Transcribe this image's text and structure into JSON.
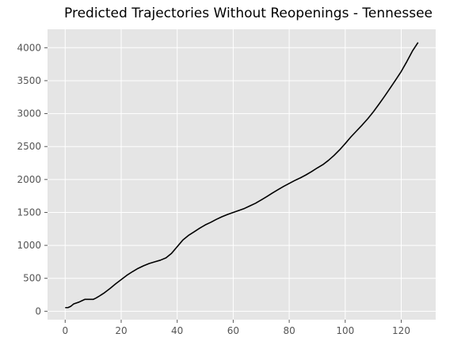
{
  "chart_data": {
    "type": "line",
    "title": "Predicted Trajectories Without Reopenings - Tennessee",
    "xlabel": "",
    "ylabel": "",
    "xlim": [
      -6.3,
      132.3
    ],
    "ylim": [
      -128,
      4280
    ],
    "xticks": [
      0,
      20,
      40,
      60,
      80,
      100,
      120
    ],
    "yticks": [
      0,
      500,
      1000,
      1500,
      2000,
      2500,
      3000,
      3500,
      4000
    ],
    "grid": true,
    "legend": "none",
    "colors": {
      "axes_background": "#e5e5e5",
      "grid": "#ffffff",
      "line": "#000000",
      "tick_label": "#555555"
    },
    "series": [
      {
        "x": [
          0,
          1,
          2,
          3,
          5,
          6,
          7,
          8,
          10,
          11,
          12,
          14,
          16,
          18,
          20,
          22,
          24,
          26,
          28,
          30,
          32,
          34,
          36,
          38,
          40,
          42,
          44,
          46,
          48,
          50,
          52,
          54,
          56,
          58,
          60,
          62,
          64,
          66,
          68,
          70,
          72,
          74,
          76,
          78,
          80,
          82,
          84,
          86,
          88,
          90,
          92,
          94,
          96,
          98,
          100,
          102,
          104,
          106,
          108,
          110,
          112,
          114,
          116,
          118,
          120,
          122,
          124,
          126
        ],
        "values": [
          55,
          55,
          75,
          110,
          140,
          160,
          180,
          180,
          180,
          200,
          225,
          280,
          345,
          415,
          480,
          545,
          600,
          650,
          690,
          725,
          750,
          775,
          810,
          880,
          980,
          1080,
          1150,
          1205,
          1260,
          1310,
          1350,
          1395,
          1435,
          1470,
          1500,
          1530,
          1560,
          1600,
          1640,
          1690,
          1740,
          1795,
          1845,
          1895,
          1940,
          1985,
          2025,
          2070,
          2120,
          2175,
          2225,
          2290,
          2365,
          2450,
          2545,
          2645,
          2735,
          2825,
          2920,
          3025,
          3140,
          3260,
          3385,
          3510,
          3640,
          3790,
          3950,
          4080
        ]
      }
    ]
  }
}
